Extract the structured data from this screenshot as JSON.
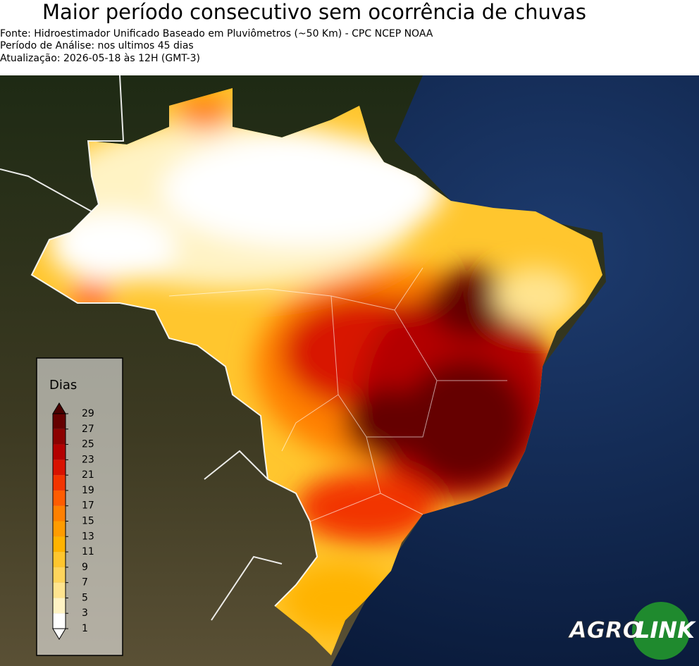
{
  "header": {
    "title": "Maior período consecutivo sem ocorrência de chuvas",
    "lines": [
      "Fonte: Hidroestimador Unificado Baseado em Pluviômetros (~50 Km) - CPC NCEP NOAA",
      "Período de Análise: nos ultimos 45 dias",
      "Atualização: 2026-05-18 às 12H (GMT-3)"
    ]
  },
  "legend": {
    "title": "Dias",
    "ticks": [
      1,
      3,
      5,
      7,
      9,
      11,
      13,
      15,
      17,
      19,
      21,
      23,
      25,
      27,
      29
    ],
    "colors": [
      "#ffffff",
      "#fff3c4",
      "#ffe48f",
      "#ffd55c",
      "#ffc62e",
      "#ffb300",
      "#ff9c00",
      "#ff8000",
      "#ff5c00",
      "#f23400",
      "#d81200",
      "#b30000",
      "#8c0000",
      "#650000"
    ],
    "under_color": "#ffffff",
    "over_color": "#4a0000"
  },
  "logo": {
    "left": "AGRO",
    "right": "LINK"
  }
}
